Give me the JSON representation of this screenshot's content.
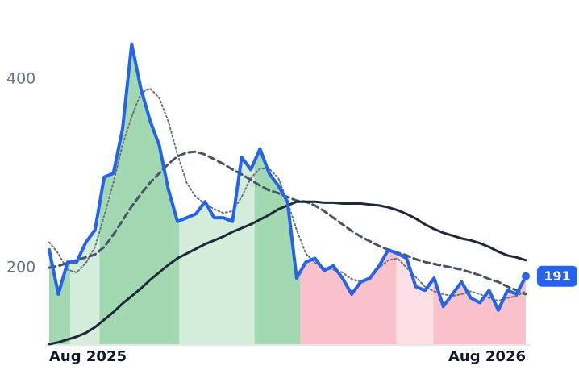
{
  "chart_data": {
    "type": "line",
    "x": [
      0,
      1,
      2,
      3,
      4,
      5,
      6,
      7,
      8,
      9,
      10,
      11,
      12,
      13,
      14,
      15,
      16,
      17,
      18,
      19,
      20,
      21,
      22,
      23,
      24,
      25,
      26,
      27,
      28,
      29,
      30,
      31,
      32,
      33,
      34,
      35,
      36,
      37,
      38,
      39,
      40,
      41,
      42,
      43,
      44,
      45,
      46,
      47,
      48,
      49,
      50,
      51,
      52
    ],
    "series": [
      {
        "color": "#2563eb",
        "dash": "solid",
        "emphasis": true,
        "values": [
          219,
          172,
          206,
          206,
          227,
          240,
          296,
          300,
          347,
          437,
          390,
          356,
          330,
          283,
          249,
          253,
          257,
          270,
          253,
          253,
          249,
          317,
          304,
          326,
          300,
          287,
          270,
          189,
          206,
          210,
          197,
          202,
          189,
          172,
          185,
          189,
          202,
          219,
          215,
          210,
          180,
          176,
          189,
          159,
          172,
          185,
          168,
          163,
          176,
          155,
          176,
          172,
          191
        ]
      },
      {
        "color": "#6b7280",
        "dash": "dotted",
        "emphasis": false,
        "values": [
          227,
          215,
          198,
          195,
          205,
          222,
          255,
          290,
          330,
          360,
          385,
          390,
          380,
          355,
          320,
          290,
          275,
          268,
          262,
          258,
          260,
          275,
          295,
          305,
          305,
          295,
          270,
          240,
          215,
          205,
          200,
          198,
          195,
          188,
          185,
          190,
          200,
          208,
          210,
          200,
          190,
          180,
          175,
          172,
          170,
          172,
          175,
          172,
          168,
          165,
          168,
          170,
          175
        ]
      },
      {
        "color": "#475569",
        "dash": "dashed",
        "emphasis": false,
        "values": [
          200,
          202,
          205,
          208,
          211,
          214,
          222,
          235,
          250,
          265,
          278,
          290,
          300,
          310,
          318,
          322,
          323,
          320,
          315,
          310,
          304,
          299,
          293,
          287,
          282,
          279,
          275,
          271,
          270,
          266,
          260,
          253,
          246,
          239,
          233,
          228,
          223,
          219,
          216,
          213,
          209,
          206,
          204,
          202,
          200,
          198,
          195,
          192,
          188,
          185,
          180,
          176,
          172
        ]
      },
      {
        "color": "#1e293b",
        "dash": "solid",
        "emphasis": false,
        "values": [
          119,
          121,
          124,
          127,
          131,
          137,
          145,
          153,
          162,
          170,
          178,
          187,
          195,
          203,
          210,
          215,
          220,
          225,
          229,
          233,
          238,
          242,
          246,
          251,
          256,
          262,
          266,
          270,
          270,
          270,
          269,
          269,
          268,
          268,
          268,
          267,
          266,
          264,
          261,
          257,
          252,
          246,
          241,
          237,
          234,
          231,
          229,
          226,
          222,
          217,
          213,
          211,
          208
        ]
      }
    ],
    "segments": [
      {
        "start": 0,
        "end": 2.3,
        "color": "#a3d9b2"
      },
      {
        "start": 2.3,
        "end": 5.5,
        "color": "#d4ecda"
      },
      {
        "start": 5.5,
        "end": 14.2,
        "color": "#a3d9b2"
      },
      {
        "start": 14.2,
        "end": 22.4,
        "color": "#d4ecda"
      },
      {
        "start": 22.4,
        "end": 27.4,
        "color": "#a3d9b2"
      },
      {
        "start": 27.4,
        "end": 37.9,
        "color": "#f9c1cc"
      },
      {
        "start": 37.9,
        "end": 41.9,
        "color": "#fcdfe5"
      },
      {
        "start": 41.9,
        "end": 52,
        "color": "#f9c1cc"
      }
    ],
    "xlim": [
      0,
      52
    ],
    "xticks": [
      {
        "value": 0,
        "label": "Aug 2025"
      },
      {
        "value": 52,
        "label": "Aug 2026"
      }
    ],
    "ylim": [
      119,
      480
    ],
    "yticks": [
      200,
      400
    ],
    "grid": false
  }
}
